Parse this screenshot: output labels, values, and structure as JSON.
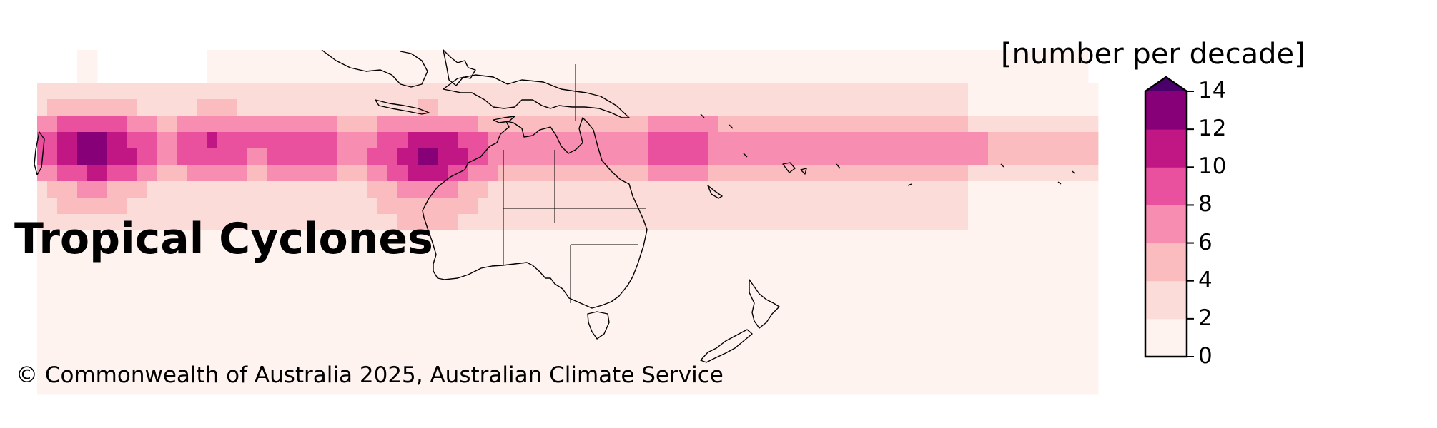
{
  "map": {
    "title": "Tropical Cyclones",
    "copyright": "© Commonwealth of Australia 2025, Australian Climate Service",
    "region": "Australia and surrounding Indian/Pacific Ocean"
  },
  "legend": {
    "title": "[number per decade]",
    "ticks": [
      "0",
      "2",
      "4",
      "6",
      "8",
      "10",
      "12",
      "14"
    ],
    "bins": [
      {
        "min": 0,
        "max": 2,
        "color": "#fff3f0"
      },
      {
        "min": 2,
        "max": 4,
        "color": "#fcdcd9"
      },
      {
        "min": 4,
        "max": 6,
        "color": "#fbbcbf"
      },
      {
        "min": 6,
        "max": 8,
        "color": "#f78db0"
      },
      {
        "min": 8,
        "max": 10,
        "color": "#e9509e"
      },
      {
        "min": 10,
        "max": 12,
        "color": "#c01784"
      },
      {
        "min": 12,
        "max": 14,
        "color": "#870078"
      },
      {
        "min": 14,
        "max": null,
        "color": "#4a006a"
      }
    ],
    "extend": "max"
  },
  "colors": {
    "outline": "#000000",
    "background": "#ffffff"
  }
}
